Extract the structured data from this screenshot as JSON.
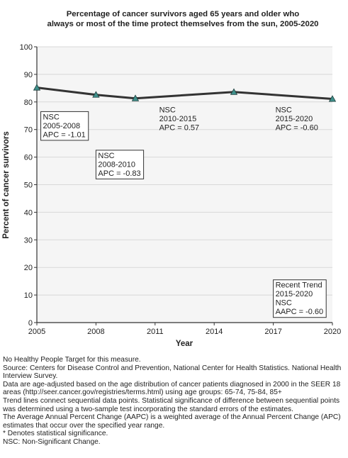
{
  "chart_data": {
    "type": "line",
    "title": "Percentage of cancer survivors aged 65 years and older who always or most of the time protect themselves from the sun, 2005-2020",
    "title_lines": [
      "Percentage of cancer survivors aged 65 years and older who",
      "always or most of the time protect themselves from the sun, 2005-2020"
    ],
    "xlabel": "Year",
    "ylabel": "Percent of cancer survivors",
    "xlim": [
      2005,
      2020
    ],
    "ylim": [
      0,
      100
    ],
    "x_ticks": [
      2005,
      2008,
      2011,
      2014,
      2017,
      2020
    ],
    "y_ticks": [
      0,
      10,
      20,
      30,
      40,
      50,
      60,
      70,
      80,
      90,
      100
    ],
    "grid": true,
    "series": [
      {
        "x": [
          2005,
          2008,
          2010,
          2015,
          2020
        ],
        "values": [
          85.2,
          82.6,
          81.3,
          83.6,
          81.1
        ]
      }
    ],
    "annotations": [
      {
        "lines": [
          "NSC",
          "2005-2008",
          "APC = -1.01"
        ],
        "boxed": true,
        "anchor_x": 2005.2,
        "anchor_y": 76.5
      },
      {
        "lines": [
          "NSC",
          "2008-2010",
          "APC = -0.83"
        ],
        "boxed": true,
        "anchor_x": 2008.0,
        "anchor_y": 62.5
      },
      {
        "lines": [
          "NSC",
          "2010-2015",
          "APC =  0.57"
        ],
        "boxed": false,
        "anchor_x": 2011.1,
        "anchor_y": 79.0
      },
      {
        "lines": [
          "NSC",
          "2015-2020",
          "APC = -0.60"
        ],
        "boxed": false,
        "anchor_x": 2017.0,
        "anchor_y": 79.0
      },
      {
        "lines": [
          "Recent Trend",
          "2015-2020",
          "NSC",
          "AAPC = -0.60"
        ],
        "boxed": true,
        "anchor_x": 2017.0,
        "anchor_y": 15.5
      }
    ]
  },
  "footnotes": [
    "No Healthy People Target for this measure.",
    "Source: Centers for Disease Control and Prevention, National Center for Health Statistics. National Health Interview Survey.",
    "Data are age-adjusted based on the age distribution of cancer patients diagnosed in 2000 in the SEER 18 areas (http://seer.cancer.gov/registries/terms.html) using age groups: 65-74, 75-84, 85+",
    "Trend lines connect sequential data points. Statistical significance of difference between sequential points was determined using a two-sample test incorporating the standard errors of the estimates.",
    "The Average Annual Percent Change (AAPC) is a weighted average of the Annual Percent Change (APC) estimates that occur over the specified year range.",
    "* Denotes statistical significance.",
    "NSC: Non-Significant Change."
  ],
  "colors": {
    "line": "#333333",
    "marker_fill": "#3f8f8a",
    "marker_stroke": "#1f3f3d",
    "plot_bg": "#f5f5f5",
    "grid": "#d8d8d8",
    "axis": "#333333",
    "box_border": "#333333"
  }
}
